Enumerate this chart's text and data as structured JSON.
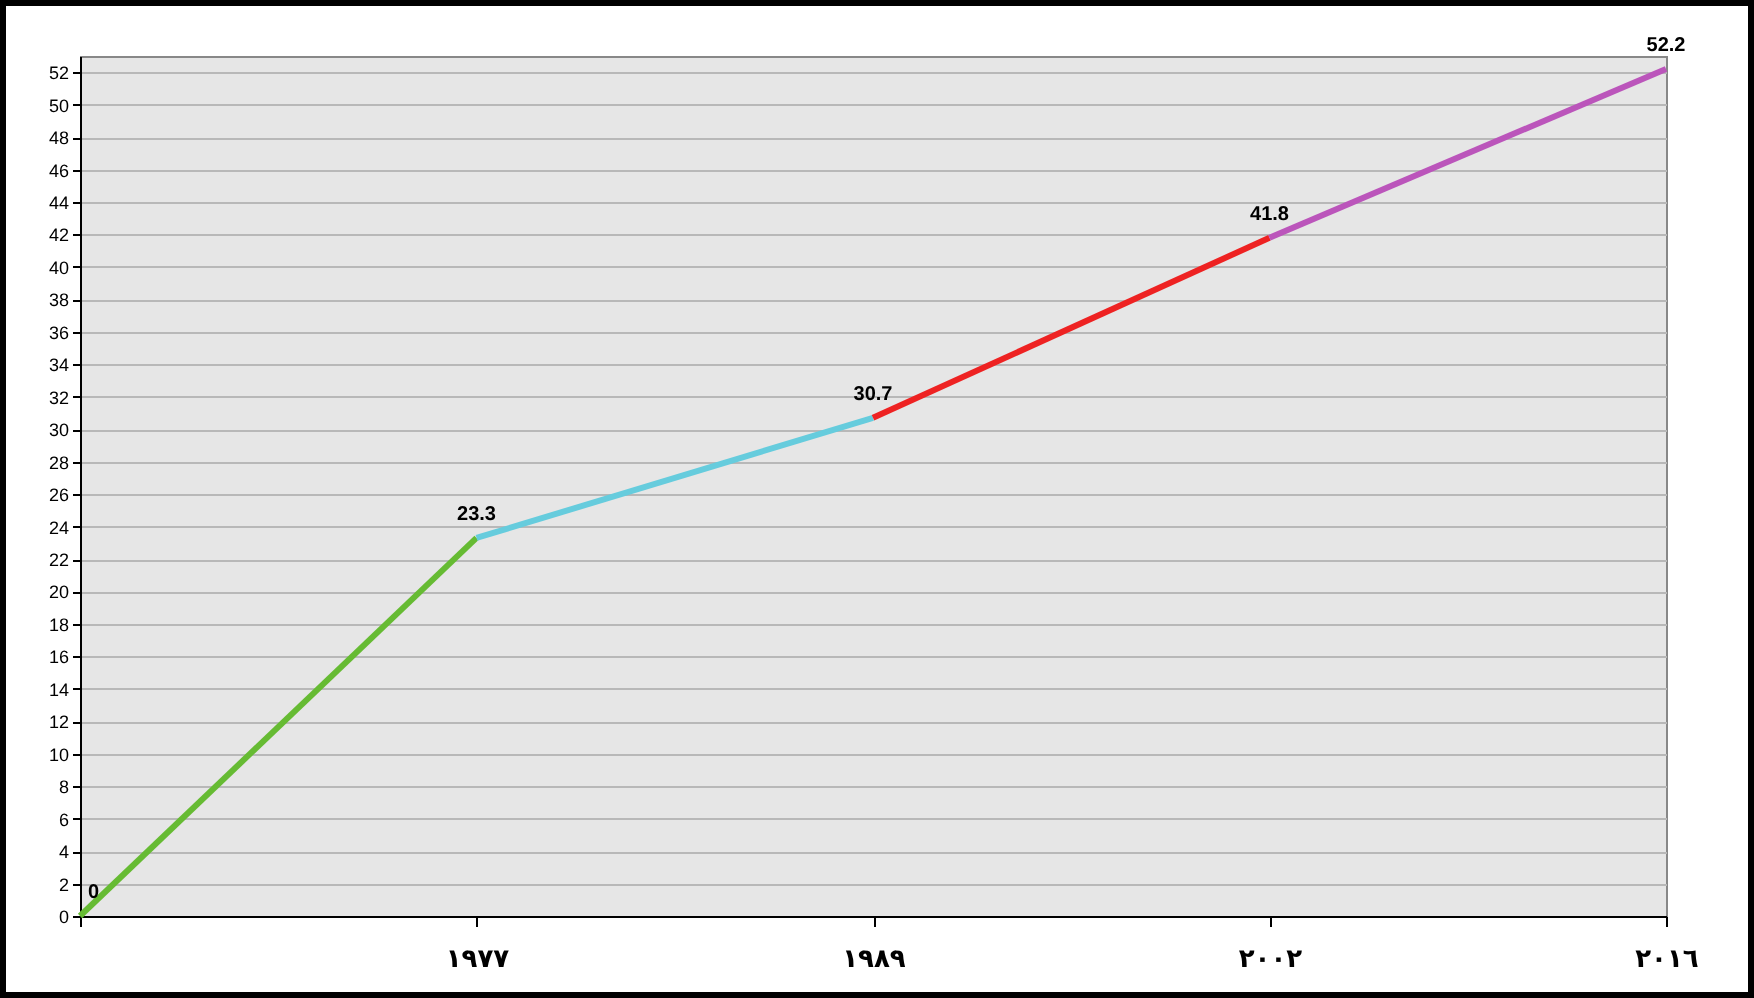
{
  "chart_data": {
    "type": "line",
    "categories": [
      null,
      "١٩٧٧",
      "١٩٨٩",
      "٢٠٠٢",
      "٢٠١٦"
    ],
    "series": [
      {
        "color": "#66bb33",
        "values": [
          0,
          23.3,
          null,
          null,
          null
        ],
        "value_labels": [
          "0",
          "23.3",
          null,
          null,
          null
        ]
      },
      {
        "color": "#66ccdd",
        "values": [
          null,
          23.3,
          30.7,
          null,
          null
        ],
        "value_labels": [
          null,
          null,
          "30.7",
          null,
          null
        ]
      },
      {
        "color": "#ee2222",
        "values": [
          null,
          null,
          30.7,
          41.8,
          null
        ],
        "value_labels": [
          null,
          null,
          null,
          "41.8",
          null
        ]
      },
      {
        "color": "#bb55bb",
        "values": [
          null,
          null,
          null,
          41.8,
          52.2
        ],
        "value_labels": [
          null,
          null,
          null,
          null,
          "52.2"
        ]
      }
    ],
    "ylim": [
      0,
      53
    ],
    "yticks": [
      0,
      2,
      4,
      6,
      8,
      10,
      12,
      14,
      16,
      18,
      20,
      22,
      24,
      26,
      28,
      30,
      32,
      34,
      36,
      38,
      40,
      42,
      44,
      46,
      48,
      50,
      52
    ],
    "grid": "y",
    "legend": false,
    "marker": "none",
    "line_style": "solid"
  }
}
